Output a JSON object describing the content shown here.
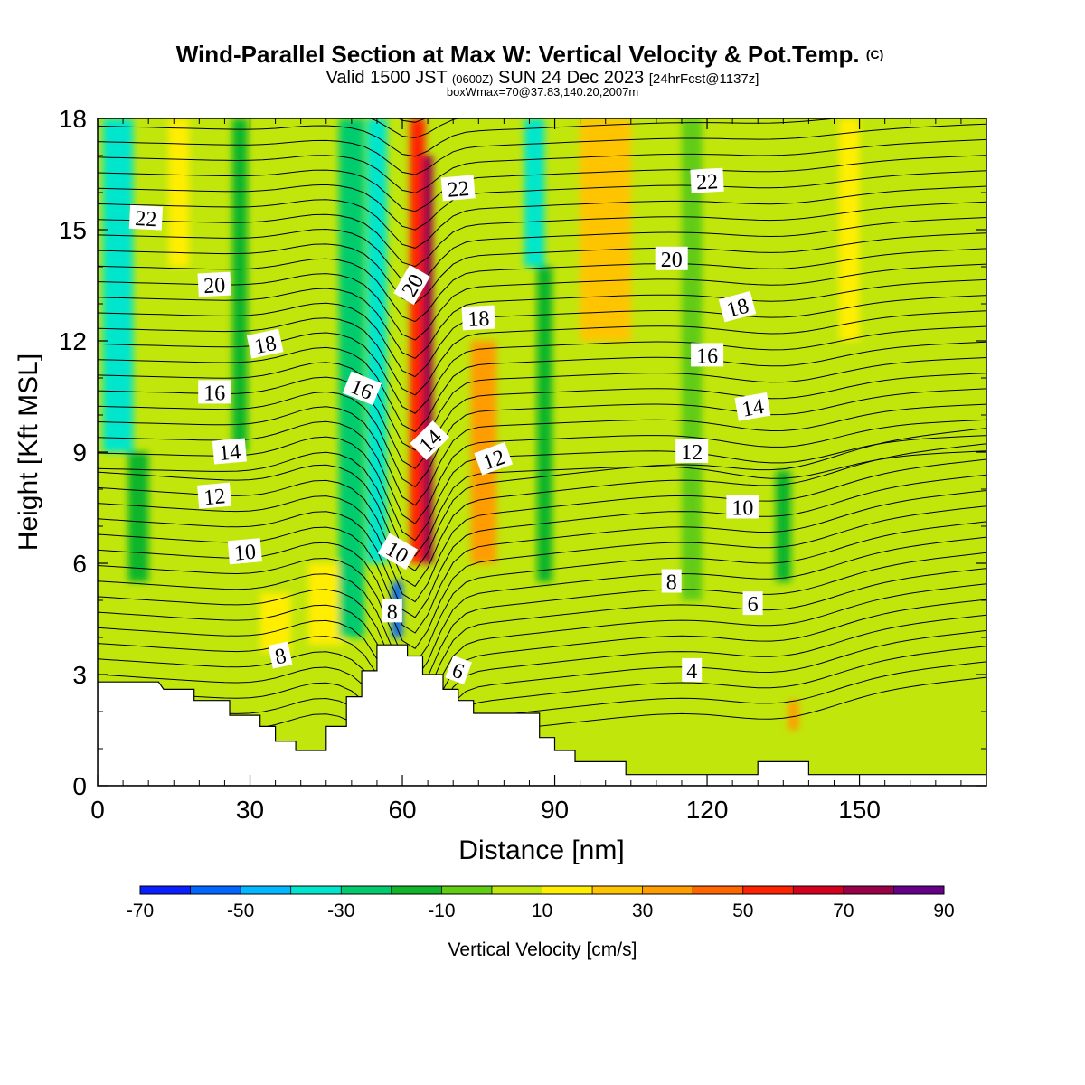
{
  "title": {
    "main": "Wind-Parallel Section at Max W: Vertical Velocity & Pot.Temp.",
    "main_suffix": "(C)",
    "valid_prefix": "Valid 1500 JST",
    "valid_utc": "(0600Z)",
    "valid_date": "SUN 24 Dec 2023",
    "valid_fcst": "[24hrFcst@1137z]",
    "box_info": "boxWmax=70@37.83,140.20,2007m"
  },
  "chart_data": {
    "type": "heatmap",
    "xlabel": "Distance [nm]",
    "ylabel": "Height [Kft MSL]",
    "xlim": [
      0,
      175
    ],
    "ylim": [
      0,
      18
    ],
    "x_ticks": [
      0,
      30,
      60,
      90,
      120,
      150
    ],
    "y_ticks": [
      0,
      3,
      6,
      9,
      12,
      15,
      18
    ],
    "colorbar": {
      "label": "Vertical Velocity [cm/s]",
      "min": -70,
      "max": 90,
      "step": 10,
      "tick_labels": [
        -70,
        -50,
        -30,
        -10,
        10,
        30,
        50,
        70,
        90
      ],
      "colors": [
        "#0a1fff",
        "#0066ff",
        "#00b8ff",
        "#00e6cc",
        "#00cc6e",
        "#11b52a",
        "#60cc12",
        "#c1e60c",
        "#ffee00",
        "#ffc400",
        "#ff9c00",
        "#ff6600",
        "#ff2200",
        "#d4001e",
        "#990048",
        "#660088"
      ]
    },
    "vertical_velocity_bands": [
      {
        "x": 4,
        "width": 6,
        "w": -40,
        "z_top": 18,
        "z_bottom": 9
      },
      {
        "x": 8,
        "width": 4,
        "w": -20,
        "z_top": 9,
        "z_bottom": 5.5
      },
      {
        "x": 16,
        "width": 4,
        "w": 10,
        "z_top": 18,
        "z_bottom": 14
      },
      {
        "x": 28,
        "width": 3,
        "w": -20,
        "z_top": 18,
        "z_bottom": 9
      },
      {
        "x": 35,
        "width": 6,
        "w": 10,
        "z_top": 5.2,
        "z_bottom": 3.6
      },
      {
        "x": 45,
        "width": 7,
        "w": 10,
        "z_top": 6,
        "z_bottom": 3.8
      },
      {
        "x": 50,
        "width": 5,
        "w": -30,
        "z_top": 18,
        "z_bottom": 4
      },
      {
        "x": 55,
        "width": 4,
        "w": -40,
        "z_top": 18,
        "z_bottom": 6
      },
      {
        "x": 59,
        "width": 2,
        "w": -60,
        "z_top": 5.5,
        "z_bottom": 4
      },
      {
        "x": 63,
        "width": 3,
        "w": 50,
        "z_top": 18,
        "z_bottom": 6
      },
      {
        "x": 65,
        "width": 2,
        "w": 70,
        "z_top": 17,
        "z_bottom": 6
      },
      {
        "x": 76,
        "width": 5,
        "w": 30,
        "z_top": 12,
        "z_bottom": 6
      },
      {
        "x": 86,
        "width": 4,
        "w": -40,
        "z_top": 18,
        "z_bottom": 14
      },
      {
        "x": 88,
        "width": 3,
        "w": -20,
        "z_top": 14,
        "z_bottom": 5.5
      },
      {
        "x": 100,
        "width": 10,
        "w": 20,
        "z_top": 18,
        "z_bottom": 12
      },
      {
        "x": 117,
        "width": 4,
        "w": -10,
        "z_top": 18,
        "z_bottom": 5
      },
      {
        "x": 135,
        "width": 3,
        "w": -20,
        "z_top": 8.5,
        "z_bottom": 5.5
      },
      {
        "x": 137,
        "width": 2,
        "w": 30,
        "z_top": 2.3,
        "z_bottom": 1.5
      },
      {
        "x": 148,
        "width": 4,
        "w": 10,
        "z_top": 18,
        "z_bottom": 12
      }
    ],
    "terrain": [
      [
        0,
        2.8
      ],
      [
        12,
        2.8
      ],
      [
        13,
        2.6
      ],
      [
        19,
        2.6
      ],
      [
        19,
        2.3
      ],
      [
        26,
        2.3
      ],
      [
        26,
        1.9
      ],
      [
        32,
        1.9
      ],
      [
        32,
        1.6
      ],
      [
        35,
        1.6
      ],
      [
        35,
        1.2
      ],
      [
        39,
        1.2
      ],
      [
        39,
        0.95
      ],
      [
        45,
        0.95
      ],
      [
        45,
        1.6
      ],
      [
        49,
        1.6
      ],
      [
        49,
        2.4
      ],
      [
        52,
        2.4
      ],
      [
        52,
        3.1
      ],
      [
        55,
        3.1
      ],
      [
        55,
        3.8
      ],
      [
        61,
        3.8
      ],
      [
        61,
        3.5
      ],
      [
        64,
        3.5
      ],
      [
        64,
        3.0
      ],
      [
        68,
        3.0
      ],
      [
        68,
        2.6
      ],
      [
        71,
        2.6
      ],
      [
        71,
        2.3
      ],
      [
        74,
        2.3
      ],
      [
        74,
        1.95
      ],
      [
        87,
        1.95
      ],
      [
        87,
        1.3
      ],
      [
        90,
        1.3
      ],
      [
        90,
        0.95
      ],
      [
        94,
        0.95
      ],
      [
        94,
        0.65
      ],
      [
        104,
        0.65
      ],
      [
        104,
        0.3
      ],
      [
        130,
        0.3
      ],
      [
        130,
        0.65
      ],
      [
        140,
        0.65
      ],
      [
        140,
        0.3
      ],
      [
        175,
        0.3
      ]
    ],
    "theta_labels": [
      {
        "text": "22",
        "x": 9.5,
        "z": 15.3,
        "angle": 3
      },
      {
        "text": "20",
        "x": 23,
        "z": 13.5,
        "angle": -3
      },
      {
        "text": "18",
        "x": 33,
        "z": 11.9,
        "angle": -12
      },
      {
        "text": "16",
        "x": 23,
        "z": 10.6,
        "angle": 0
      },
      {
        "text": "14",
        "x": 26,
        "z": 9.0,
        "angle": -5
      },
      {
        "text": "12",
        "x": 23,
        "z": 7.8,
        "angle": -5
      },
      {
        "text": "10",
        "x": 29,
        "z": 6.3,
        "angle": -5
      },
      {
        "text": "8",
        "x": 36,
        "z": 3.5,
        "angle": -12
      },
      {
        "text": "16",
        "x": 52,
        "z": 10.7,
        "angle": 22
      },
      {
        "text": "20",
        "x": 62,
        "z": 13.5,
        "angle": -60
      },
      {
        "text": "22",
        "x": 71,
        "z": 16.1,
        "angle": -5
      },
      {
        "text": "18",
        "x": 75,
        "z": 12.6,
        "angle": -3
      },
      {
        "text": "14",
        "x": 65.5,
        "z": 9.3,
        "angle": -45
      },
      {
        "text": "12",
        "x": 78,
        "z": 8.8,
        "angle": -20
      },
      {
        "text": "10",
        "x": 59,
        "z": 6.3,
        "angle": 30
      },
      {
        "text": "8",
        "x": 58,
        "z": 4.7,
        "angle": 0
      },
      {
        "text": "6",
        "x": 71,
        "z": 3.1,
        "angle": 20
      },
      {
        "text": "22",
        "x": 120,
        "z": 16.3,
        "angle": -3
      },
      {
        "text": "20",
        "x": 113,
        "z": 14.2,
        "angle": 0
      },
      {
        "text": "18",
        "x": 126,
        "z": 12.9,
        "angle": -15
      },
      {
        "text": "16",
        "x": 120,
        "z": 11.6,
        "angle": 0
      },
      {
        "text": "14",
        "x": 129,
        "z": 10.2,
        "angle": -10
      },
      {
        "text": "12",
        "x": 117,
        "z": 9.0,
        "angle": 0
      },
      {
        "text": "10",
        "x": 127,
        "z": 7.5,
        "angle": 0
      },
      {
        "text": "8",
        "x": 113,
        "z": 5.5,
        "angle": 0
      },
      {
        "text": "6",
        "x": 129,
        "z": 4.9,
        "angle": 0
      },
      {
        "text": "4",
        "x": 117,
        "z": 3.1,
        "angle": 0
      }
    ]
  }
}
